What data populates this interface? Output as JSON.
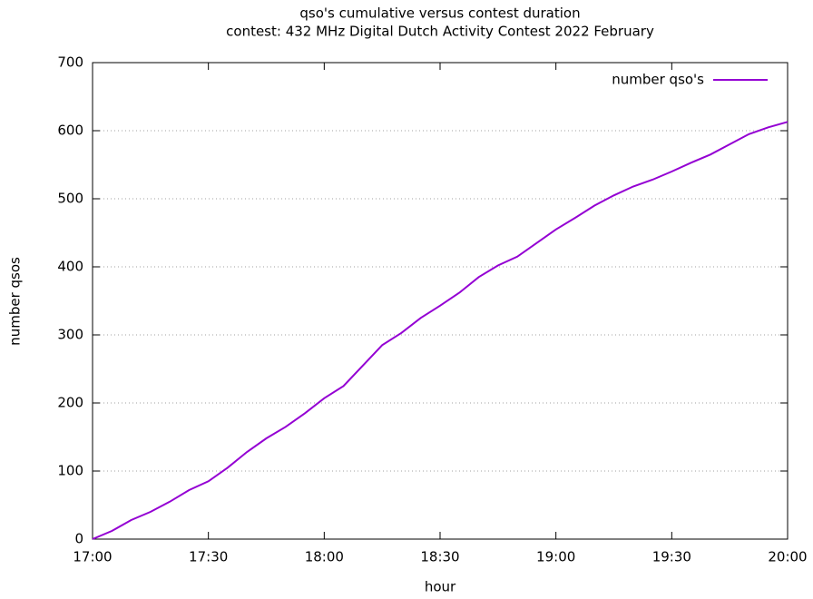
{
  "chart_data": {
    "type": "line",
    "title": "qso's cumulative versus contest duration",
    "subtitle": "contest: 432 MHz Digital Dutch Activity Contest  2022 February",
    "x_label": "hour",
    "y_label": "number qsos",
    "x": [
      "17:00",
      "17:05",
      "17:10",
      "17:15",
      "17:20",
      "17:25",
      "17:30",
      "17:35",
      "17:40",
      "17:45",
      "17:50",
      "17:55",
      "18:00",
      "18:05",
      "18:10",
      "18:15",
      "18:20",
      "18:25",
      "18:30",
      "18:35",
      "18:40",
      "18:45",
      "18:50",
      "18:55",
      "19:00",
      "19:05",
      "19:10",
      "19:15",
      "19:20",
      "19:25",
      "19:30",
      "19:35",
      "19:40",
      "19:45",
      "19:50",
      "19:55",
      "20:00"
    ],
    "series": [
      {
        "name": "number qso's",
        "color": "#9400d3",
        "values": [
          0,
          12,
          28,
          40,
          55,
          72,
          85,
          105,
          128,
          148,
          165,
          185,
          207,
          225,
          255,
          285,
          303,
          325,
          343,
          362,
          385,
          402,
          415,
          435,
          455,
          472,
          490,
          505,
          518,
          528,
          540,
          553,
          565,
          580,
          595,
          605,
          613
        ]
      }
    ],
    "xlim": [
      "17:00",
      "20:00"
    ],
    "xticks": [
      "17:00",
      "17:30",
      "18:00",
      "18:30",
      "19:00",
      "19:30",
      "20:00"
    ],
    "ylim": [
      0,
      700
    ],
    "yticks": [
      0,
      100,
      200,
      300,
      400,
      500,
      600,
      700
    ],
    "grid": true,
    "legend": "top-right"
  }
}
